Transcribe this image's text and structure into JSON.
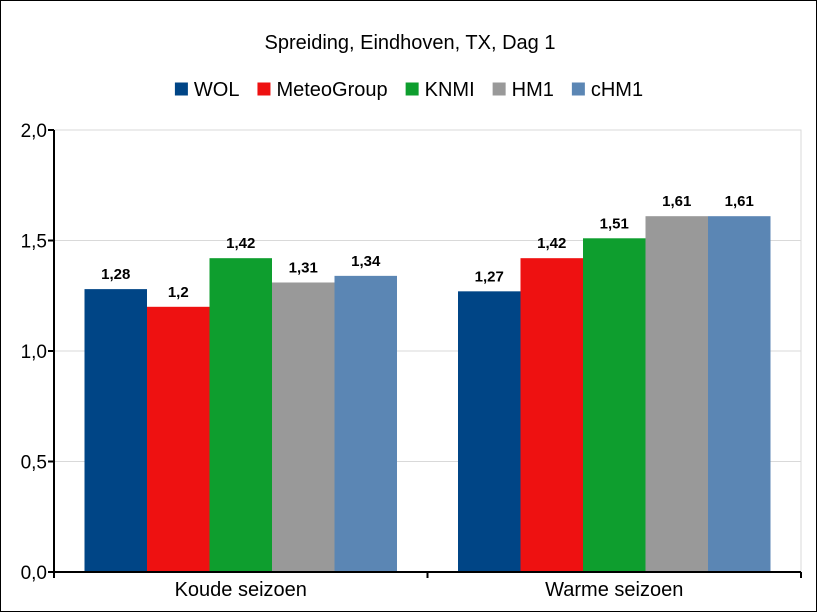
{
  "chart_data": {
    "type": "bar",
    "title": "Spreiding, Eindhoven, TX, Dag 1",
    "categories": [
      "Koude seizoen",
      "Warme seizoen"
    ],
    "series": [
      {
        "name": "WOL",
        "color": "#004586",
        "values": [
          1.28,
          1.27
        ],
        "labels": [
          "1,28",
          "1,27"
        ]
      },
      {
        "name": "MeteoGroup",
        "color": "#ee1111",
        "values": [
          1.2,
          1.42
        ],
        "labels": [
          "1,2",
          "1,42"
        ]
      },
      {
        "name": "KNMI",
        "color": "#0e9e2e",
        "values": [
          1.42,
          1.51
        ],
        "labels": [
          "1,42",
          "1,51"
        ]
      },
      {
        "name": "HM1",
        "color": "#999999",
        "values": [
          1.31,
          1.61
        ],
        "labels": [
          "1,31",
          "1,61"
        ]
      },
      {
        "name": "cHM1",
        "color": "#5b86b4",
        "values": [
          1.34,
          1.61
        ],
        "labels": [
          "1,34",
          "1,61"
        ]
      }
    ],
    "ylim": [
      0,
      2
    ],
    "yticks": [
      0,
      0.5,
      1,
      1.5,
      2
    ],
    "ytick_labels": [
      "0,0",
      "0,5",
      "1,0",
      "1,5",
      "2,0"
    ],
    "grid": true,
    "legend_position": "top"
  }
}
